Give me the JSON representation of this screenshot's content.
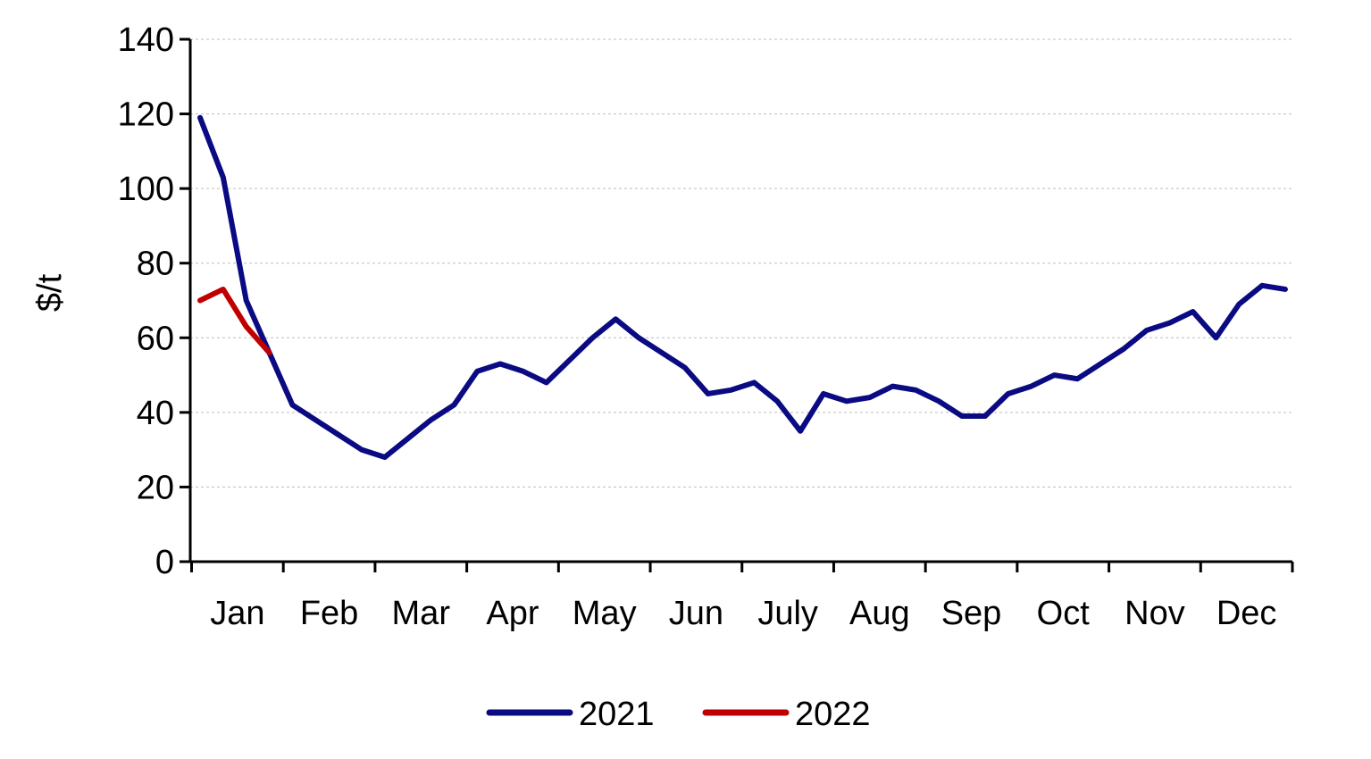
{
  "chart_data": {
    "type": "line",
    "title": "",
    "xlabel": "",
    "ylabel": "$/t",
    "ylim": [
      0,
      140
    ],
    "y_ticks": [
      0,
      20,
      40,
      60,
      80,
      100,
      120,
      140
    ],
    "x_range": [
      0,
      48
    ],
    "month_labels": [
      "Jan",
      "Feb",
      "Mar",
      "Apr",
      "May",
      "Jun",
      "July",
      "Aug",
      "Sep",
      "Oct",
      "Nov",
      "Dec"
    ],
    "grid": true,
    "legend_position": "bottom",
    "series": [
      {
        "name": "2021",
        "color": "#0a0a82",
        "x": [
          0,
          1,
          2,
          3,
          4,
          5,
          6,
          7,
          8,
          9,
          10,
          11,
          12,
          13,
          14,
          15,
          16,
          17,
          18,
          19,
          20,
          21,
          22,
          23,
          24,
          25,
          26,
          27,
          28,
          29,
          30,
          31,
          32,
          33,
          34,
          35,
          36,
          37,
          38,
          39,
          40,
          41,
          42,
          43,
          44,
          45,
          46,
          47
        ],
        "values": [
          119,
          103,
          70,
          56,
          42,
          38,
          34,
          30,
          28,
          33,
          38,
          42,
          51,
          53,
          51,
          48,
          54,
          60,
          65,
          60,
          56,
          52,
          45,
          46,
          48,
          43,
          35,
          45,
          43,
          44,
          47,
          46,
          43,
          39,
          39,
          45,
          47,
          50,
          49,
          53,
          57,
          62,
          64,
          67,
          60,
          69,
          74,
          73
        ]
      },
      {
        "name": "2022",
        "color": "#c00000",
        "x": [
          0,
          1,
          2,
          3
        ],
        "values": [
          70,
          73,
          63,
          56
        ]
      }
    ]
  }
}
